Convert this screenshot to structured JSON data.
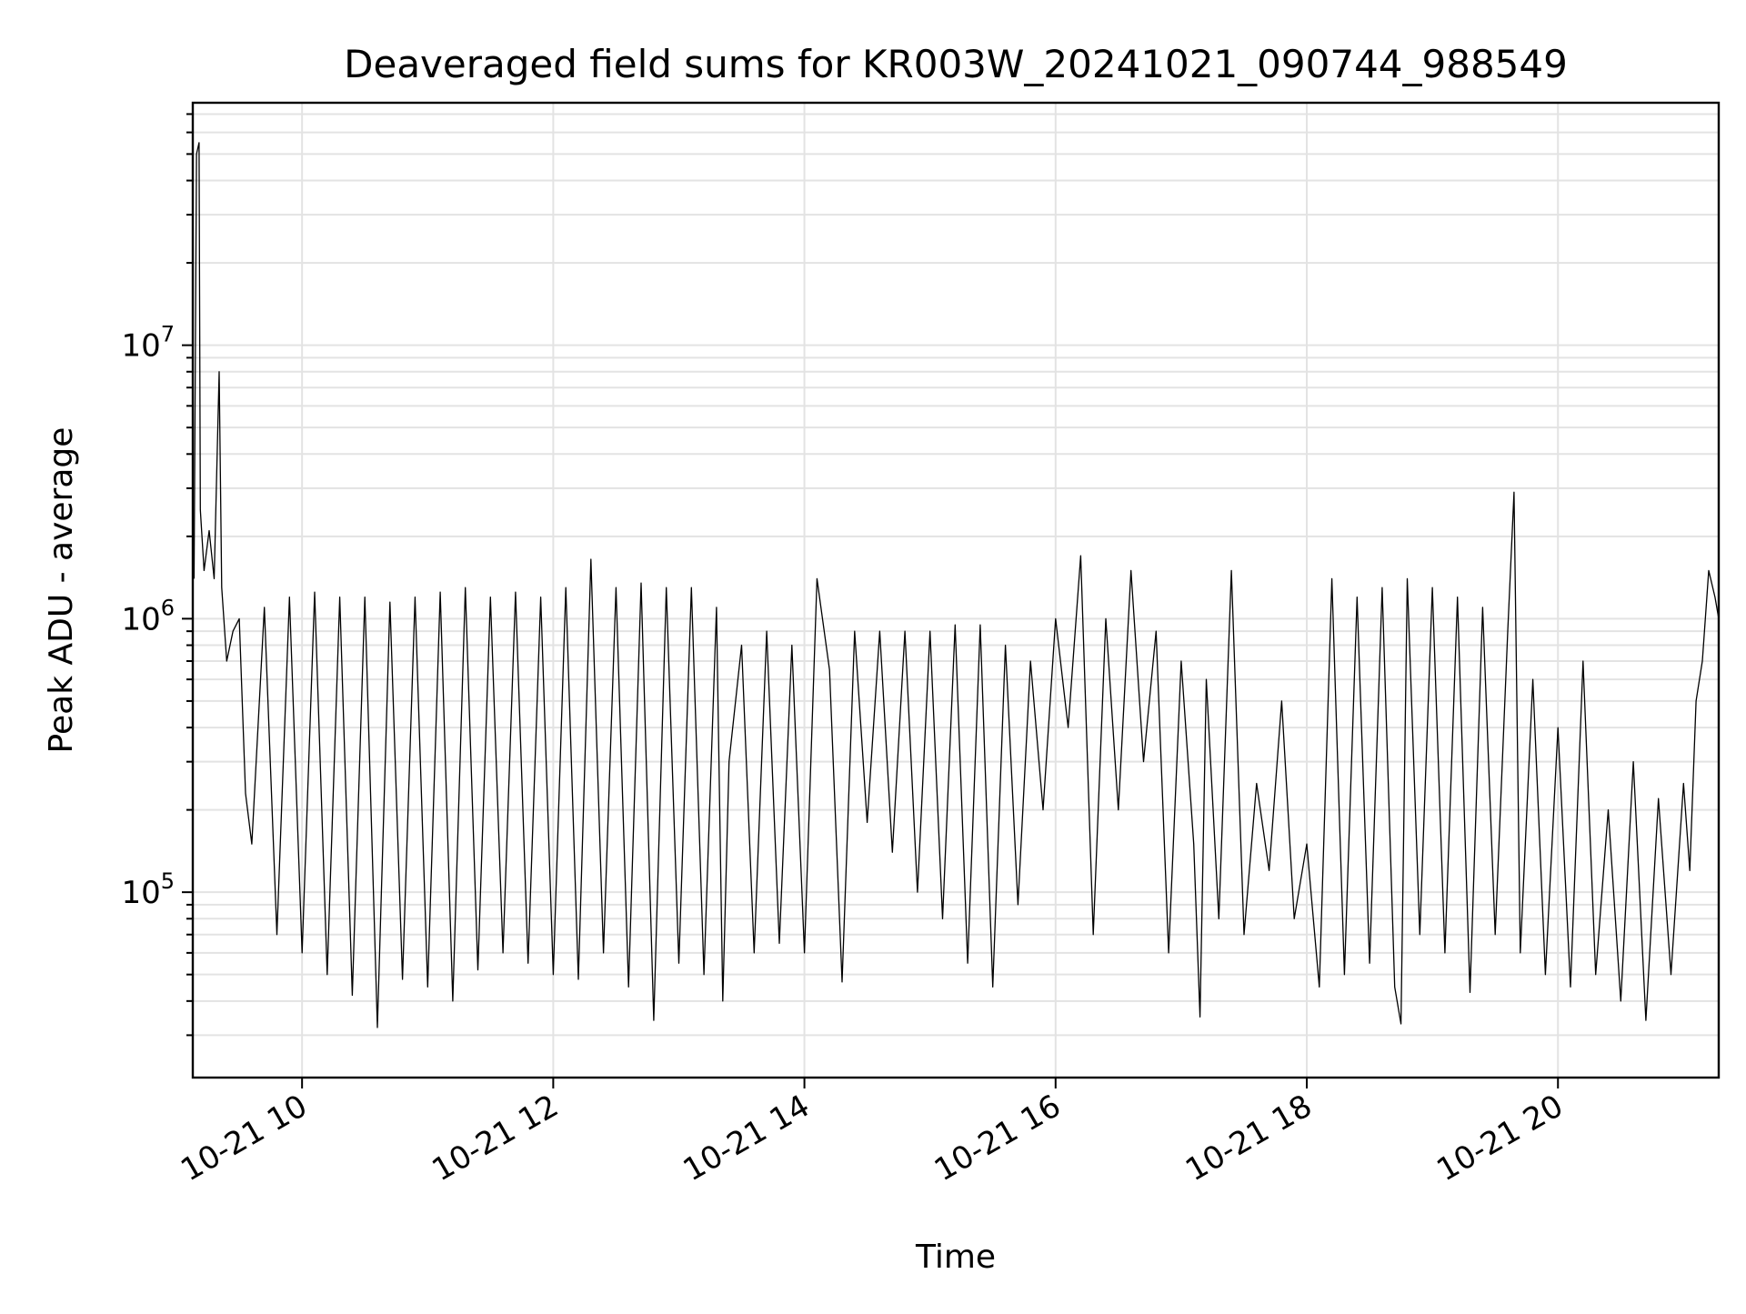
{
  "chart_data": {
    "type": "line",
    "title": "Deaveraged field sums for KR003W_20241021_090744_988549",
    "xlabel": "Time",
    "ylabel": "Peak ADU - average",
    "x_unit": "hours of 2024-10-21",
    "xlim": [
      9.13,
      21.28
    ],
    "ylim": [
      21000,
      77000000
    ],
    "yscale": "log",
    "grid": true,
    "line_color": "#000000",
    "x_ticks": [
      {
        "value": 10,
        "label": "10-21 10"
      },
      {
        "value": 12,
        "label": "10-21 12"
      },
      {
        "value": 14,
        "label": "10-21 14"
      },
      {
        "value": 16,
        "label": "10-21 16"
      },
      {
        "value": 18,
        "label": "10-21 18"
      },
      {
        "value": 20,
        "label": "10-21 20"
      }
    ],
    "y_ticks": [
      {
        "value": 100000,
        "base": "10",
        "exp": "5"
      },
      {
        "value": 1000000,
        "base": "10",
        "exp": "6"
      },
      {
        "value": 10000000,
        "base": "10",
        "exp": "7"
      }
    ],
    "series": [
      {
        "points": [
          [
            9.14,
            1400000
          ],
          [
            9.16,
            50000000
          ],
          [
            9.18,
            55000000
          ],
          [
            9.19,
            2500000
          ],
          [
            9.22,
            1500000
          ],
          [
            9.26,
            2100000
          ],
          [
            9.3,
            1400000
          ],
          [
            9.34,
            8000000
          ],
          [
            9.36,
            1300000
          ],
          [
            9.4,
            700000
          ],
          [
            9.45,
            900000
          ],
          [
            9.5,
            1000000
          ],
          [
            9.55,
            230000
          ],
          [
            9.6,
            150000
          ],
          [
            9.7,
            1100000
          ],
          [
            9.8,
            70000
          ],
          [
            9.9,
            1200000
          ],
          [
            10.0,
            60000
          ],
          [
            10.1,
            1250000
          ],
          [
            10.2,
            50000
          ],
          [
            10.3,
            1200000
          ],
          [
            10.4,
            42000
          ],
          [
            10.5,
            1200000
          ],
          [
            10.6,
            32000
          ],
          [
            10.7,
            1150000
          ],
          [
            10.8,
            48000
          ],
          [
            10.9,
            1200000
          ],
          [
            11.0,
            45000
          ],
          [
            11.1,
            1250000
          ],
          [
            11.2,
            40000
          ],
          [
            11.3,
            1300000
          ],
          [
            11.4,
            52000
          ],
          [
            11.5,
            1200000
          ],
          [
            11.6,
            60000
          ],
          [
            11.7,
            1250000
          ],
          [
            11.8,
            55000
          ],
          [
            11.9,
            1200000
          ],
          [
            12.0,
            50000
          ],
          [
            12.1,
            1300000
          ],
          [
            12.2,
            48000
          ],
          [
            12.3,
            1650000
          ],
          [
            12.4,
            60000
          ],
          [
            12.5,
            1300000
          ],
          [
            12.6,
            45000
          ],
          [
            12.7,
            1350000
          ],
          [
            12.8,
            34000
          ],
          [
            12.9,
            1300000
          ],
          [
            13.0,
            55000
          ],
          [
            13.1,
            1300000
          ],
          [
            13.2,
            50000
          ],
          [
            13.3,
            1100000
          ],
          [
            13.35,
            40000
          ],
          [
            13.4,
            300000
          ],
          [
            13.5,
            800000
          ],
          [
            13.6,
            60000
          ],
          [
            13.7,
            900000
          ],
          [
            13.8,
            65000
          ],
          [
            13.9,
            800000
          ],
          [
            14.0,
            60000
          ],
          [
            14.1,
            1400000
          ],
          [
            14.2,
            650000
          ],
          [
            14.3,
            47000
          ],
          [
            14.4,
            900000
          ],
          [
            14.5,
            180000
          ],
          [
            14.6,
            900000
          ],
          [
            14.7,
            140000
          ],
          [
            14.8,
            900000
          ],
          [
            14.9,
            100000
          ],
          [
            15.0,
            900000
          ],
          [
            15.1,
            80000
          ],
          [
            15.2,
            950000
          ],
          [
            15.3,
            55000
          ],
          [
            15.4,
            950000
          ],
          [
            15.5,
            45000
          ],
          [
            15.6,
            800000
          ],
          [
            15.7,
            90000
          ],
          [
            15.8,
            700000
          ],
          [
            15.9,
            200000
          ],
          [
            16.0,
            1000000
          ],
          [
            16.1,
            400000
          ],
          [
            16.2,
            1700000
          ],
          [
            16.3,
            70000
          ],
          [
            16.4,
            1000000
          ],
          [
            16.5,
            200000
          ],
          [
            16.6,
            1500000
          ],
          [
            16.7,
            300000
          ],
          [
            16.8,
            900000
          ],
          [
            16.9,
            60000
          ],
          [
            17.0,
            700000
          ],
          [
            17.1,
            150000
          ],
          [
            17.15,
            35000
          ],
          [
            17.2,
            600000
          ],
          [
            17.3,
            80000
          ],
          [
            17.4,
            1500000
          ],
          [
            17.5,
            70000
          ],
          [
            17.6,
            250000
          ],
          [
            17.7,
            120000
          ],
          [
            17.8,
            500000
          ],
          [
            17.9,
            80000
          ],
          [
            18.0,
            150000
          ],
          [
            18.1,
            45000
          ],
          [
            18.2,
            1400000
          ],
          [
            18.3,
            50000
          ],
          [
            18.4,
            1200000
          ],
          [
            18.5,
            55000
          ],
          [
            18.6,
            1300000
          ],
          [
            18.7,
            45000
          ],
          [
            18.75,
            33000
          ],
          [
            18.8,
            1400000
          ],
          [
            18.9,
            70000
          ],
          [
            19.0,
            1300000
          ],
          [
            19.1,
            60000
          ],
          [
            19.2,
            1200000
          ],
          [
            19.3,
            43000
          ],
          [
            19.4,
            1100000
          ],
          [
            19.5,
            70000
          ],
          [
            19.6,
            900000
          ],
          [
            19.65,
            2900000
          ],
          [
            19.7,
            60000
          ],
          [
            19.8,
            600000
          ],
          [
            19.9,
            50000
          ],
          [
            20.0,
            400000
          ],
          [
            20.1,
            45000
          ],
          [
            20.2,
            700000
          ],
          [
            20.3,
            50000
          ],
          [
            20.4,
            200000
          ],
          [
            20.5,
            40000
          ],
          [
            20.6,
            300000
          ],
          [
            20.7,
            34000
          ],
          [
            20.8,
            220000
          ],
          [
            20.9,
            50000
          ],
          [
            21.0,
            250000
          ],
          [
            21.05,
            120000
          ],
          [
            21.1,
            500000
          ],
          [
            21.15,
            700000
          ],
          [
            21.2,
            1500000
          ],
          [
            21.25,
            1200000
          ],
          [
            21.28,
            1000000
          ]
        ]
      }
    ]
  }
}
